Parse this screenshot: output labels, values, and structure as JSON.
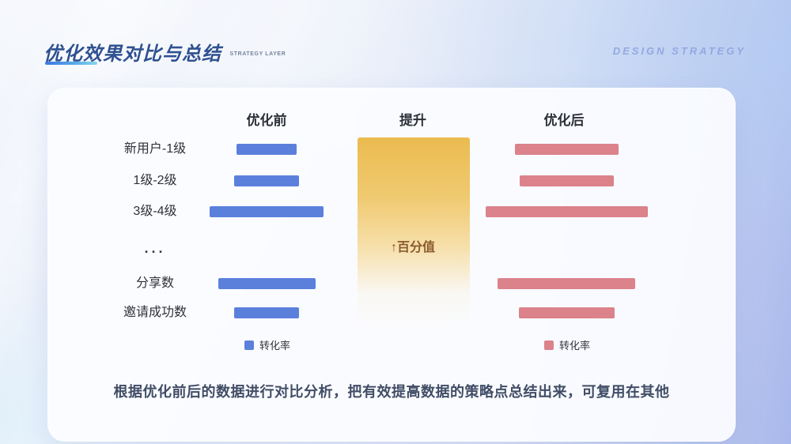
{
  "header": {
    "title": "优化效果对比与总结",
    "tagline": "STRATEGY LAYER",
    "watermark": "DESIGN STRATEGY"
  },
  "colors": {
    "title_blue": "#2f5191",
    "bar_blue": "#5b80dc",
    "bar_red": "#db828b",
    "lift_gold_top": "#ebbb50",
    "lift_text_brown": "#8a5a2e"
  },
  "chart_data": {
    "type": "bar",
    "orientation": "horizontal",
    "columns": [
      "优化前",
      "提升",
      "优化后"
    ],
    "categories": [
      "新用户-1级",
      "1级-2级",
      "3级-4级",
      "···",
      "分享数",
      "邀请成功数"
    ],
    "separator_index": 3,
    "unit": "relative bar length, longest bar = 100 (no numeric axis shown)",
    "series": [
      {
        "name": "转化率",
        "column": "优化前",
        "color": "#5b80dc",
        "values": [
          37,
          40,
          70,
          null,
          60,
          40
        ]
      },
      {
        "name": "转化率",
        "column": "优化后",
        "color": "#db828b",
        "values": [
          64,
          58,
          100,
          null,
          85,
          59
        ]
      }
    ],
    "lift_label": "↑百分值",
    "legend": [
      {
        "label": "转化率",
        "color": "#5b80dc"
      },
      {
        "label": "转化率",
        "color": "#db828b"
      }
    ],
    "legend_position": "below chart, one under each bar column",
    "grid": false
  },
  "footer": {
    "summary": "根据优化前后的数据进行对比分析，把有效提高数据的策略点总结出来，可复用在其他"
  }
}
